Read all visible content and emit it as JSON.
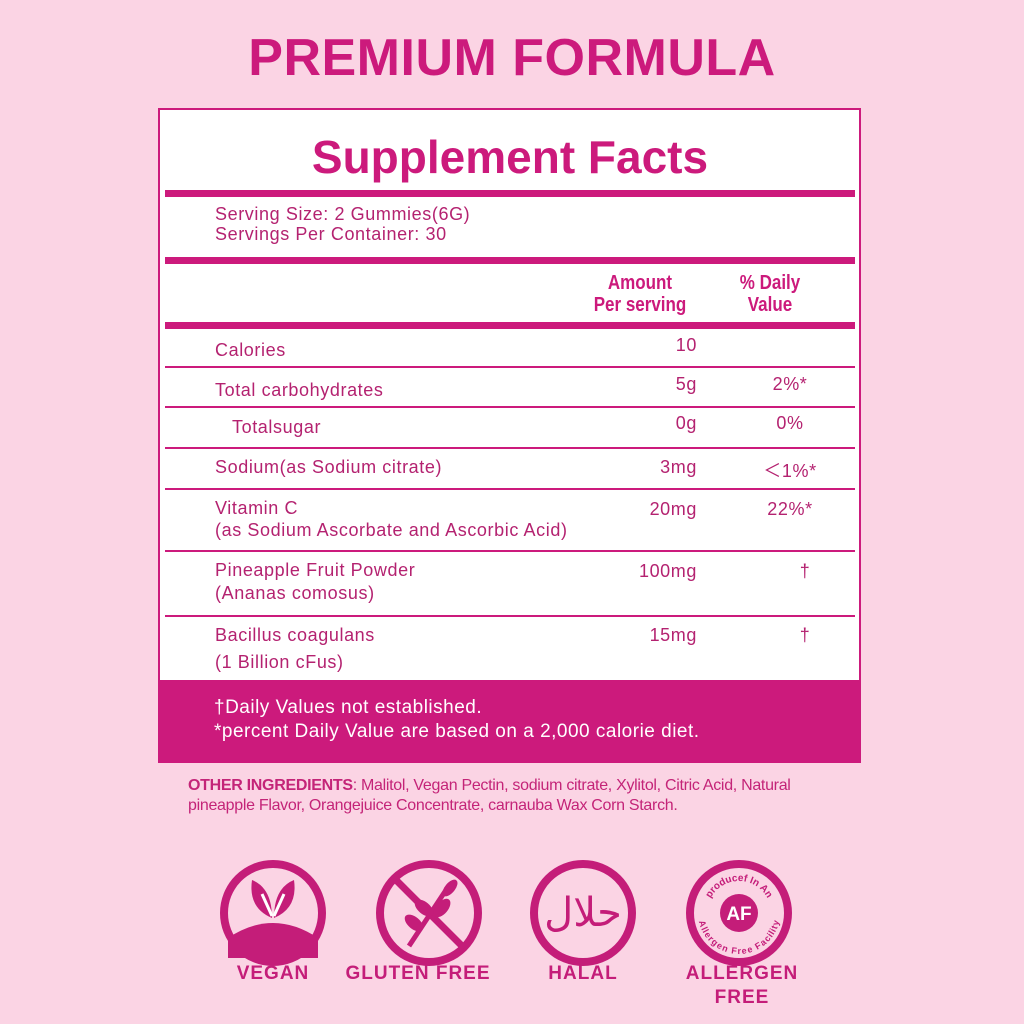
{
  "header": {
    "title": "PREMIUM FORMULA"
  },
  "facts": {
    "title": "Supplement Facts",
    "serving_size": "Serving Size: 2 Gummies(6G)",
    "servings_per_container": "Servings Per Container: 30",
    "col_amount": [
      "Amount",
      "Per serving"
    ],
    "col_dv": [
      "% Daily",
      "Value"
    ],
    "rows": [
      {
        "name": "Calories",
        "amount": "10",
        "dv": ""
      },
      {
        "name": "Total carbohydrates",
        "amount": "5g",
        "dv": "2%*"
      },
      {
        "name": "Totalsugar",
        "amount": "0g",
        "dv": "0%"
      },
      {
        "name": "Sodium(as Sodium citrate)",
        "amount": "3mg",
        "dv": "＜1%*"
      },
      {
        "name": "Vitamin C",
        "sub": "(as Sodium Ascorbate and Ascorbic Acid)",
        "amount": "20mg",
        "dv": "22%*"
      },
      {
        "name": "Pineapple Fruit Powder",
        "sub": "(Ananas comosus)",
        "amount": "100mg",
        "dv": "†"
      },
      {
        "name": "Bacillus coagulans",
        "sub": "(1 Billion cFus)",
        "amount": "15mg",
        "dv": "†"
      }
    ],
    "footnote1": "†Daily Values not established.",
    "footnote2": "*percent Daily Value are based on a 2,000 calorie diet."
  },
  "ingredients": {
    "label": "OTHER INGREDIENTS",
    "text": ": Malitol, Vegan Pectin, sodium citrate, Xylitol, Citric Acid, Natural pineapple Flavor, Orangejuice Concentrate, carnauba Wax Corn Starch."
  },
  "badges": [
    {
      "icon": "vegan-leaf-icon",
      "label": "VEGAN"
    },
    {
      "icon": "gluten-free-icon",
      "label": "GLUTEN FREE"
    },
    {
      "icon": "halal-icon",
      "label": "HALAL"
    },
    {
      "icon": "allergen-free-icon",
      "label": "ALLERGEN FREE",
      "seal_text_top": "producef In An",
      "seal_center": "AF",
      "seal_text_bottom": "Allergen Free Facility"
    }
  ],
  "colors": {
    "background": "#fbd4e4",
    "accent": "#cc1a7c"
  }
}
